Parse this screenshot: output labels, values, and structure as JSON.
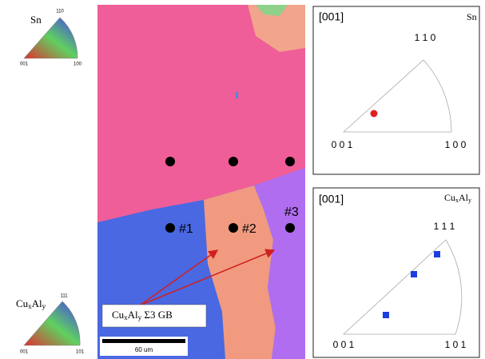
{
  "legend": {
    "sn": {
      "label": "Sn",
      "top": "110",
      "left": "001",
      "right": "100"
    },
    "cual": {
      "base": "Cu",
      "sub1": "x",
      "mid": "Al",
      "sub2": "y",
      "top": "111",
      "left": "001",
      "right": "101"
    }
  },
  "map": {
    "points": [
      "#1",
      "#2",
      "#3"
    ],
    "gb_label": {
      "base": "Cu",
      "sub1": "x",
      "mid": "Al",
      "sub2": "y",
      "rest": " Σ3 GB"
    },
    "scale_bar": "60 um"
  },
  "ipf_sn": {
    "direction": "[001]",
    "phase": "Sn",
    "top": "1 1 0",
    "left": "0 0 1",
    "right": "1 0 0"
  },
  "ipf_cual": {
    "direction": "[001]",
    "phase": {
      "base": "Cu",
      "sub1": "x",
      "mid": "Al",
      "sub2": "y"
    },
    "top": "1 1 1",
    "left": "0 0 1",
    "right": "1 0 1"
  }
}
